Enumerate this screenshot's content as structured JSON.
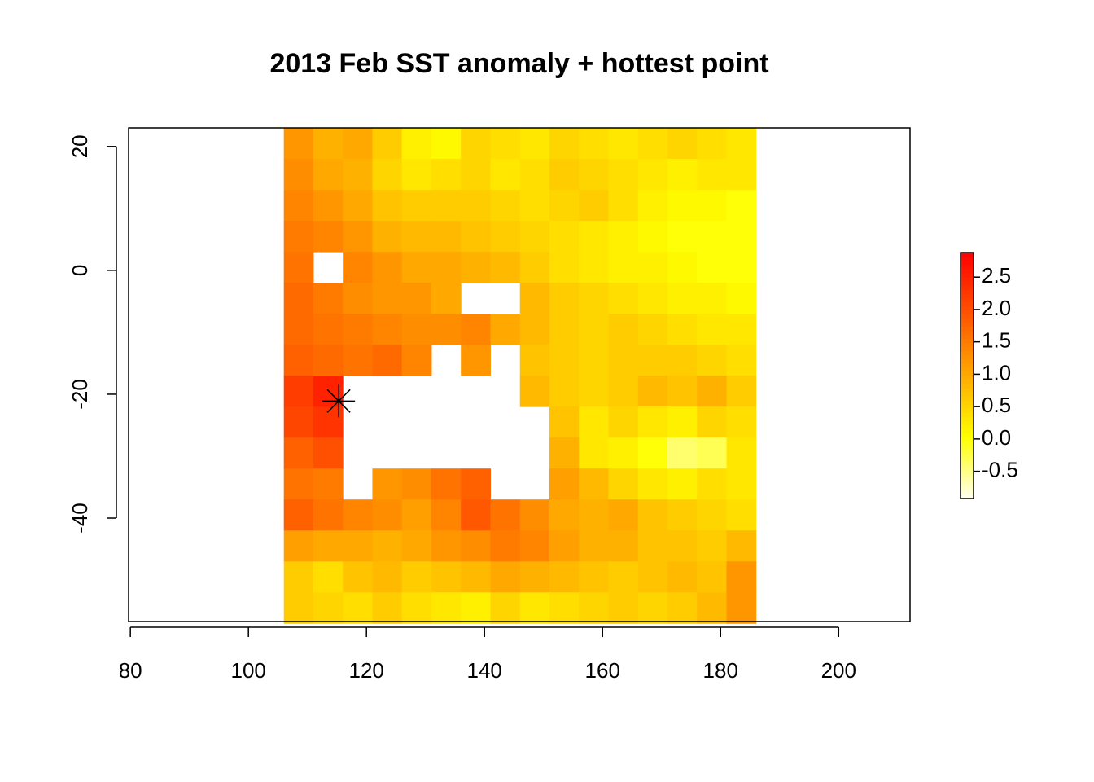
{
  "chart_data": {
    "type": "heatmap",
    "title": "2013 Feb SST anomaly + hottest point",
    "colormap": "heat.colors",
    "x": [
      108.5,
      113.5,
      118.5,
      123.5,
      128.5,
      133.5,
      138.5,
      143.5,
      148.5,
      153.5,
      158.5,
      163.5,
      168.5,
      173.5,
      178.5,
      183.5
    ],
    "y": [
      20.5,
      15.5,
      10.5,
      5.5,
      0.5,
      -4.5,
      -9.5,
      -14.5,
      -19.5,
      -24.5,
      -29.5,
      -34.5,
      -39.5,
      -44.5,
      -49.5,
      -54.5
    ],
    "values": [
      [
        1.2,
        0.9,
        1.0,
        0.6,
        0.2,
        0.1,
        0.5,
        0.4,
        0.3,
        0.5,
        0.4,
        0.3,
        0.4,
        0.5,
        0.4,
        0.3
      ],
      [
        1.3,
        1.0,
        0.9,
        0.5,
        0.3,
        0.4,
        0.5,
        0.3,
        0.4,
        0.6,
        0.5,
        0.4,
        0.3,
        0.2,
        0.3,
        0.3
      ],
      [
        1.4,
        1.2,
        1.0,
        0.7,
        0.6,
        0.6,
        0.6,
        0.5,
        0.4,
        0.5,
        0.6,
        0.4,
        0.2,
        0.1,
        0.1,
        0.0
      ],
      [
        1.5,
        1.4,
        1.2,
        0.9,
        0.8,
        0.8,
        0.7,
        0.6,
        0.5,
        0.4,
        0.3,
        0.2,
        0.1,
        0.0,
        0.0,
        0.0
      ],
      [
        1.6,
        null,
        1.4,
        1.2,
        1.0,
        1.0,
        0.9,
        0.8,
        0.6,
        0.4,
        0.3,
        0.2,
        0.2,
        0.1,
        0.0,
        0.0
      ],
      [
        1.7,
        1.5,
        1.3,
        1.2,
        1.2,
        1.0,
        null,
        null,
        0.8,
        0.6,
        0.5,
        0.4,
        0.3,
        0.2,
        0.2,
        0.1
      ],
      [
        1.7,
        1.6,
        1.5,
        1.4,
        1.3,
        1.3,
        1.4,
        1.0,
        0.8,
        0.6,
        0.5,
        0.6,
        0.5,
        0.4,
        0.3,
        0.3
      ],
      [
        1.8,
        1.7,
        1.6,
        1.7,
        1.4,
        null,
        1.2,
        null,
        0.7,
        0.6,
        0.5,
        0.6,
        0.6,
        0.6,
        0.5,
        0.4
      ],
      [
        2.2,
        2.5,
        null,
        null,
        null,
        null,
        null,
        null,
        0.8,
        0.6,
        0.5,
        0.6,
        0.8,
        0.7,
        0.9,
        0.6
      ],
      [
        2.1,
        2.3,
        null,
        null,
        null,
        null,
        null,
        null,
        null,
        0.7,
        0.3,
        0.5,
        0.3,
        0.2,
        0.5,
        0.4
      ],
      [
        1.8,
        2.0,
        null,
        null,
        null,
        null,
        null,
        null,
        null,
        0.9,
        0.3,
        0.2,
        0.0,
        -0.4,
        -0.3,
        0.3
      ],
      [
        1.6,
        1.5,
        null,
        1.2,
        1.3,
        1.6,
        1.8,
        null,
        null,
        1.1,
        0.8,
        0.5,
        0.3,
        0.2,
        0.4,
        0.3
      ],
      [
        1.8,
        1.6,
        1.4,
        1.3,
        1.1,
        1.4,
        1.9,
        1.6,
        1.3,
        1.0,
        0.9,
        1.0,
        0.7,
        0.6,
        0.5,
        0.4
      ],
      [
        1.1,
        1.0,
        1.0,
        0.9,
        1.0,
        1.2,
        1.3,
        1.5,
        1.4,
        1.1,
        0.9,
        0.9,
        0.7,
        0.7,
        0.6,
        0.8
      ],
      [
        0.6,
        0.4,
        0.7,
        0.8,
        0.6,
        0.7,
        0.8,
        1.0,
        0.9,
        0.8,
        0.7,
        0.6,
        0.7,
        0.8,
        0.7,
        1.2
      ],
      [
        0.6,
        0.5,
        0.4,
        0.6,
        0.4,
        0.3,
        0.2,
        0.5,
        0.3,
        0.4,
        0.5,
        0.6,
        0.5,
        0.6,
        0.8,
        1.2
      ]
    ],
    "hottest_point": {
      "x": 115.3,
      "y": -21.1
    },
    "xlim": [
      79.7,
      212.1
    ],
    "ylim": [
      -56.7,
      23
    ],
    "xticks": [
      80,
      100,
      120,
      140,
      160,
      180,
      200
    ],
    "yticks": [
      -40,
      -20,
      0,
      20
    ],
    "zlim": [
      -0.92,
      2.88
    ],
    "zticks": [
      -0.5,
      {
        "value": 0,
        "label": "0.0"
      },
      0.5,
      {
        "value": 1,
        "label": "1.0"
      },
      1.5,
      {
        "value": 2,
        "label": "2.0"
      },
      2.5
    ]
  }
}
